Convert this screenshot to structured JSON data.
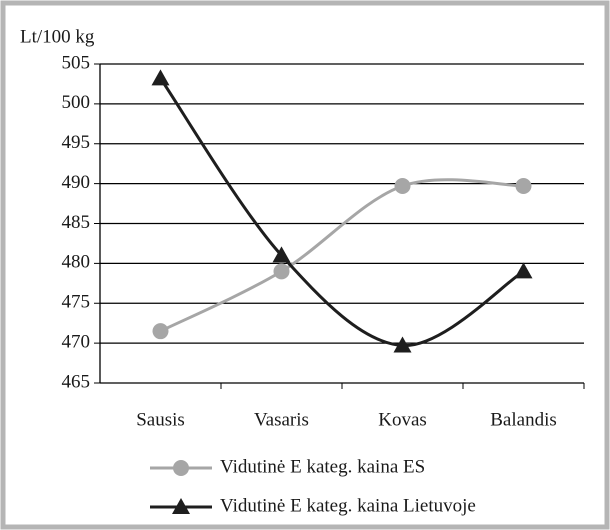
{
  "chart_data": {
    "type": "line",
    "y_label": "Lt/100 kg",
    "categories": [
      "Sausis",
      "Vasaris",
      "Kovas",
      "Balandis"
    ],
    "series": [
      {
        "name": "Vidutinė E kateg. kaina ES",
        "color": "#a6a6a6",
        "marker": "circle",
        "values": [
          471.5,
          479,
          489.7,
          489.7
        ]
      },
      {
        "name": "Vidutinė E kateg. kaina Lietuvoje",
        "color": "#1e1e1e",
        "marker": "triangle",
        "values": [
          503.2,
          481,
          469.7,
          479
        ]
      }
    ],
    "ylim": [
      465,
      505
    ],
    "yticks": [
      465,
      470,
      475,
      480,
      485,
      490,
      495,
      500,
      505
    ],
    "grid": true,
    "smooth": true,
    "legend": "bottom"
  }
}
